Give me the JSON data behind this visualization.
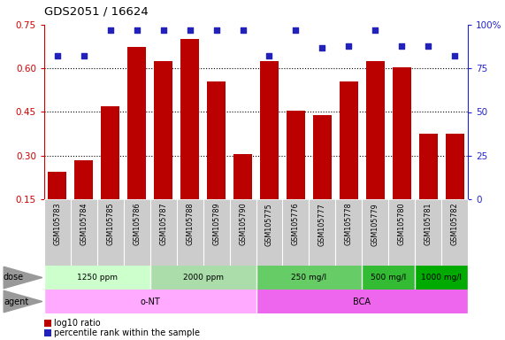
{
  "title": "GDS2051 / 16624",
  "samples": [
    "GSM105783",
    "GSM105784",
    "GSM105785",
    "GSM105786",
    "GSM105787",
    "GSM105788",
    "GSM105789",
    "GSM105790",
    "GSM105775",
    "GSM105776",
    "GSM105777",
    "GSM105778",
    "GSM105779",
    "GSM105780",
    "GSM105781",
    "GSM105782"
  ],
  "log10_ratio": [
    0.245,
    0.285,
    0.47,
    0.675,
    0.625,
    0.7,
    0.555,
    0.305,
    0.625,
    0.455,
    0.44,
    0.555,
    0.625,
    0.605,
    0.375,
    0.375
  ],
  "percentile_rank": [
    82,
    82,
    97,
    97,
    97,
    97,
    97,
    97,
    82,
    97,
    87,
    88,
    97,
    88,
    88,
    82
  ],
  "bar_color": "#bb0000",
  "dot_color": "#2222bb",
  "ylim_left": [
    0.15,
    0.75
  ],
  "ylim_right": [
    0,
    100
  ],
  "yticks_left": [
    0.15,
    0.3,
    0.45,
    0.6,
    0.75
  ],
  "yticks_right": [
    0,
    25,
    50,
    75,
    100
  ],
  "dose_groups": [
    {
      "label": "1250 ppm",
      "start": 0,
      "end": 4,
      "color": "#ccffcc"
    },
    {
      "label": "2000 ppm",
      "start": 4,
      "end": 8,
      "color": "#aaddaa"
    },
    {
      "label": "250 mg/l",
      "start": 8,
      "end": 12,
      "color": "#66cc66"
    },
    {
      "label": "500 mg/l",
      "start": 12,
      "end": 14,
      "color": "#33bb33"
    },
    {
      "label": "1000 mg/l",
      "start": 14,
      "end": 16,
      "color": "#00aa00"
    }
  ],
  "agent_groups": [
    {
      "label": "o-NT",
      "start": 0,
      "end": 8,
      "color": "#ffaaff"
    },
    {
      "label": "BCA",
      "start": 8,
      "end": 16,
      "color": "#ee66ee"
    }
  ],
  "dose_row_label": "dose",
  "agent_row_label": "agent",
  "legend_bar_label": "log10 ratio",
  "legend_dot_label": "percentile rank within the sample",
  "background_color": "#ffffff",
  "plot_bg_color": "#ffffff",
  "left_axis_color": "#cc0000",
  "right_axis_color": "#2222cc",
  "sample_bg_color": "#cccccc",
  "label_color": "#666666"
}
